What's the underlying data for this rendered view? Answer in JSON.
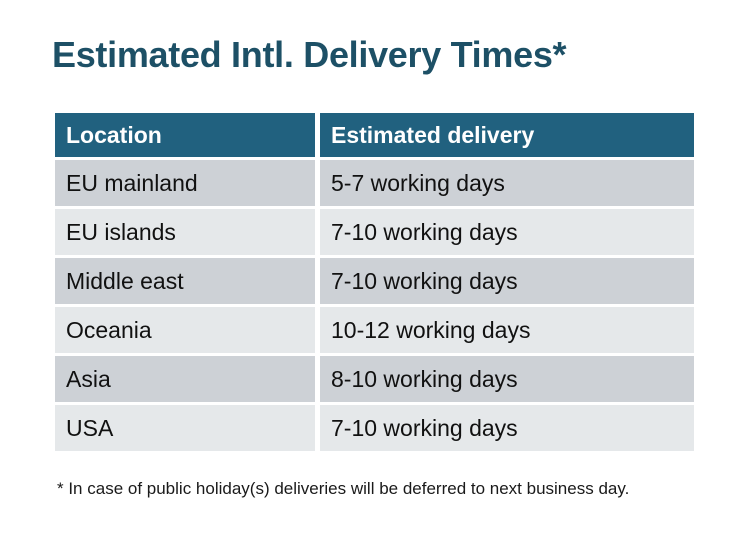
{
  "title": "Estimated Intl. Delivery Times*",
  "table": {
    "headers": [
      "Location",
      "Estimated delivery"
    ],
    "rows": [
      {
        "location": "EU mainland",
        "delivery": "5-7 working days"
      },
      {
        "location": "EU islands",
        "delivery": "7-10 working days"
      },
      {
        "location": "Middle east",
        "delivery": "7-10 working days"
      },
      {
        "location": "Oceania",
        "delivery": "10-12 working days"
      },
      {
        "location": "Asia",
        "delivery": "8-10 working days"
      },
      {
        "location": "USA",
        "delivery": "7-10 working days"
      }
    ]
  },
  "footnote": "* In case of public holiday(s) deliveries will be deferred to next business day.",
  "colors": {
    "background": "#FFFFFF",
    "title_text": "#1D5066",
    "header_bg": "#21617F",
    "header_text": "#FFFFFF",
    "row_odd_bg": "#CDD1D6",
    "row_even_bg": "#E5E8EA",
    "cell_text": "#111111",
    "footnote_text": "#1A1A1A"
  }
}
